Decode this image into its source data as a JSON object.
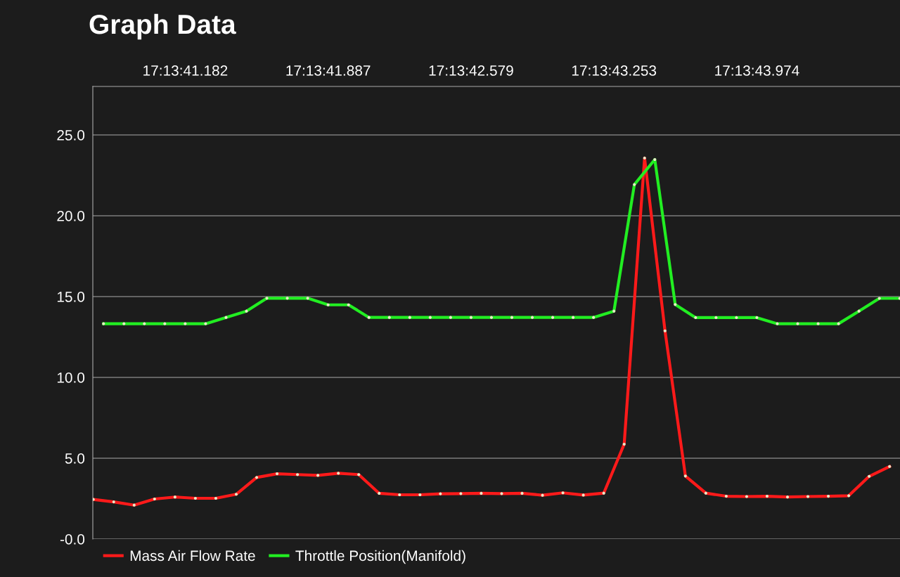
{
  "chart_data": {
    "type": "line",
    "title": "Graph Data",
    "categories": [
      null,
      null,
      null,
      null,
      null,
      null,
      null,
      null,
      null,
      "17:13:41.182",
      null,
      null,
      null,
      null,
      null,
      null,
      null,
      null,
      null,
      null,
      null,
      null,
      null,
      "17:13:41.887",
      null,
      null,
      null,
      null,
      null,
      null,
      null,
      null,
      null,
      null,
      null,
      null,
      null,
      "17:13:42.579",
      null,
      null,
      null,
      null,
      null,
      null,
      null,
      null,
      null,
      null,
      null,
      null,
      null,
      "17:13:43.253",
      null,
      null,
      null,
      null,
      null,
      null,
      null,
      null,
      null,
      null,
      null,
      null,
      null,
      "17:13:43.974",
      null,
      null,
      null,
      null,
      null,
      null,
      null,
      null,
      null,
      null,
      null,
      null,
      null,
      null
    ],
    "ylim": [
      0,
      28
    ],
    "yticks": [
      {
        "value": 0,
        "label": "-0.0"
      },
      {
        "value": 5,
        "label": "5.0"
      },
      {
        "value": 10,
        "label": "10.0"
      },
      {
        "value": 15,
        "label": "15.0"
      },
      {
        "value": 20,
        "label": "20.0"
      },
      {
        "value": 25,
        "label": "25.0"
      }
    ],
    "grid": "y",
    "legend": "bottom",
    "marker": "circle",
    "line_style": "solid",
    "series": [
      {
        "name": "Mass Air Flow Rate",
        "color": "#ff1a1a",
        "values": [
          2.45,
          null,
          2.3,
          null,
          2.1,
          null,
          2.48,
          null,
          2.6,
          null,
          2.52,
          null,
          2.52,
          null,
          2.77,
          null,
          3.81,
          null,
          4.04,
          null,
          3.99,
          null,
          3.94,
          null,
          4.07,
          null,
          3.99,
          null,
          2.83,
          null,
          2.74,
          null,
          2.74,
          null,
          2.8,
          null,
          2.81,
          null,
          2.83,
          null,
          2.81,
          null,
          2.83,
          null,
          2.71,
          null,
          2.86,
          null,
          2.72,
          null,
          2.84,
          null,
          5.87,
          null,
          23.57,
          null,
          12.88,
          null,
          3.9,
          null,
          2.84,
          null,
          2.65,
          null,
          2.63,
          null,
          2.65,
          null,
          2.6,
          null,
          2.63,
          null,
          2.65,
          null,
          2.68,
          null,
          3.88,
          null,
          4.49,
          null
        ]
      },
      {
        "name": "Throttle Position(Manifold)",
        "color": "#22ee22",
        "values": [
          null,
          13.32,
          null,
          13.32,
          null,
          13.32,
          null,
          13.32,
          null,
          13.32,
          null,
          13.32,
          null,
          13.71,
          null,
          14.1,
          null,
          14.9,
          null,
          14.9,
          null,
          14.9,
          null,
          14.49,
          null,
          14.49,
          null,
          13.71,
          null,
          13.71,
          null,
          13.71,
          null,
          13.71,
          null,
          13.71,
          null,
          13.71,
          null,
          13.71,
          null,
          13.71,
          null,
          13.71,
          null,
          13.71,
          null,
          13.71,
          null,
          13.71,
          null,
          14.1,
          null,
          21.93,
          null,
          23.48,
          null,
          14.51,
          null,
          13.7,
          null,
          13.7,
          null,
          13.7,
          null,
          13.7,
          null,
          13.32,
          null,
          13.32,
          null,
          13.32,
          null,
          13.32,
          null,
          14.1,
          null,
          14.89,
          null,
          14.89
        ]
      }
    ]
  }
}
